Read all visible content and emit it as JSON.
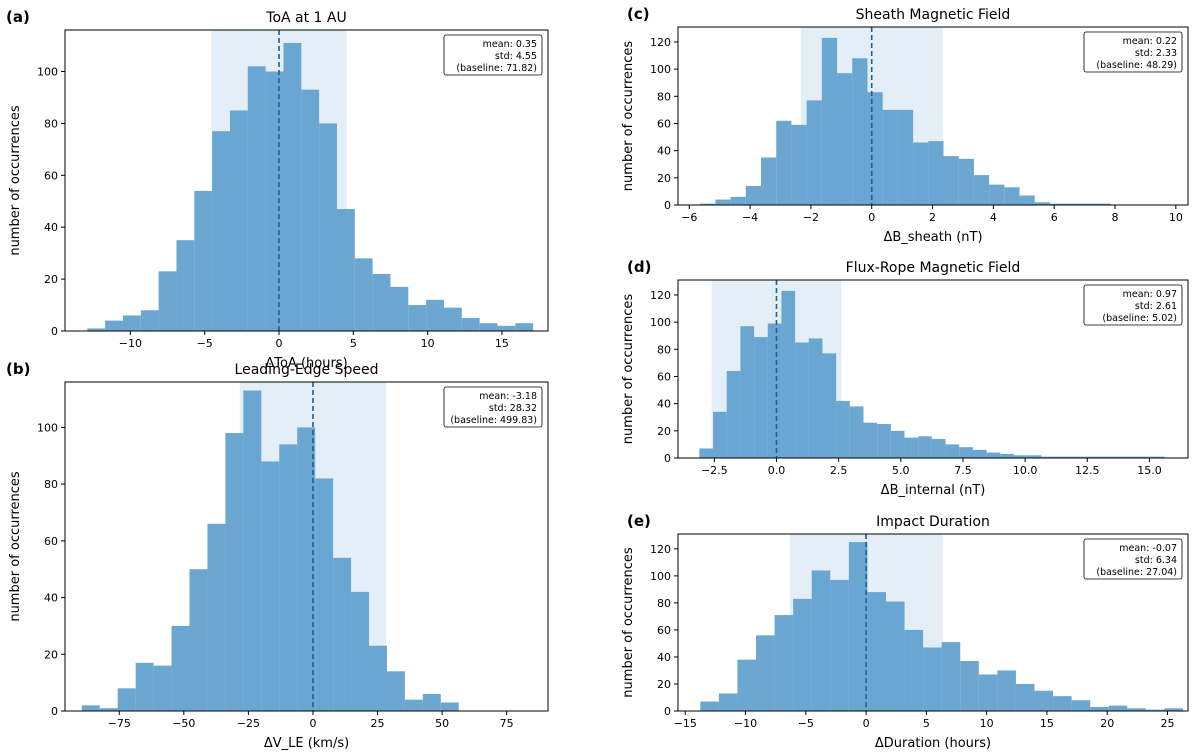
{
  "chart_data": [
    {
      "id": "a",
      "panel_label": "(a)",
      "type": "bar",
      "title": "ToA at 1 AU",
      "xlabel": "ΔToA (hours)",
      "ylabel": "number of occurrences",
      "xlim": [
        -14.4,
        18.1
      ],
      "ylim": [
        0,
        116
      ],
      "xticks": [
        -10,
        -5,
        0,
        5,
        10,
        15
      ],
      "yticks": [
        0,
        20,
        40,
        60,
        80,
        100
      ],
      "bin_start": -12.9,
      "bin_width": 1.2,
      "counts": [
        1,
        4,
        6,
        8,
        23,
        35,
        54,
        77,
        85,
        102,
        100,
        111,
        93,
        80,
        47,
        28,
        22,
        17,
        10,
        12,
        9,
        5,
        3,
        2,
        3
      ],
      "mean_line": 0,
      "shaded_range": [
        -4.55,
        4.55
      ],
      "stats": [
        "mean: 0.35",
        "std: 4.55",
        "(baseline: 71.82)"
      ]
    },
    {
      "id": "b",
      "panel_label": "(b)",
      "type": "bar",
      "title": "Leading-Edge Speed",
      "xlabel": "ΔV_LE (km/s)",
      "ylabel": "number of occurrences",
      "xlim": [
        -96,
        91
      ],
      "ylim": [
        0,
        116
      ],
      "xticks": [
        -75,
        -50,
        -25,
        0,
        25,
        50,
        75
      ],
      "yticks": [
        0,
        20,
        40,
        60,
        80,
        100
      ],
      "bin_start": -89.5,
      "bin_width": 6.95,
      "counts": [
        2,
        1,
        8,
        17,
        16,
        30,
        50,
        66,
        98,
        113,
        88,
        94,
        100,
        82,
        54,
        42,
        23,
        14,
        4,
        6,
        3
      ],
      "mean_line": 0,
      "shaded_range": [
        -28.32,
        28.32
      ],
      "stats": [
        "mean: -3.18",
        "std: 28.32",
        "(baseline: 499.83)"
      ]
    },
    {
      "id": "c",
      "panel_label": "(c)",
      "type": "bar",
      "title": "Sheath Magnetic Field",
      "xlabel": "ΔB_sheath (nT)",
      "ylabel": "number of occurrences",
      "xlim": [
        -6.37,
        10.4
      ],
      "ylim": [
        0,
        131
      ],
      "xticks": [
        -6,
        -4,
        -2,
        0,
        2,
        4,
        6,
        8,
        10
      ],
      "yticks": [
        0,
        20,
        40,
        60,
        80,
        100,
        120
      ],
      "bin_start": -5.64,
      "bin_width": 0.5,
      "counts": [
        1,
        4,
        6,
        14,
        35,
        62,
        59,
        77,
        123,
        97,
        108,
        83,
        70,
        70,
        46,
        47,
        36,
        34,
        22,
        15,
        13,
        7,
        2,
        1,
        1,
        1,
        1
      ],
      "mean_line": 0,
      "shaded_range": [
        -2.33,
        2.33
      ],
      "stats": [
        "mean: 0.22",
        "std: 2.33",
        "(baseline: 48.29)"
      ]
    },
    {
      "id": "d",
      "panel_label": "(d)",
      "type": "bar",
      "title": "Flux-Rope Magnetic Field",
      "xlabel": "ΔB_internal (nT)",
      "ylabel": "number of occurrences",
      "xlim": [
        -3.96,
        16.55
      ],
      "ylim": [
        0,
        131
      ],
      "xticks": [
        -2.5,
        0.0,
        2.5,
        5.0,
        7.5,
        10.0,
        12.5,
        15.0
      ],
      "yticks": [
        0,
        20,
        40,
        60,
        80,
        100,
        120
      ],
      "bin_start": -3.1,
      "bin_width": 0.55,
      "counts": [
        7,
        34,
        64,
        97,
        89,
        99,
        123,
        85,
        88,
        77,
        42,
        38,
        26,
        25,
        20,
        15,
        16,
        14,
        10,
        8,
        6,
        4,
        3,
        2,
        2,
        1,
        1,
        1,
        1,
        1,
        1,
        1,
        1,
        1
      ],
      "mean_line": 0,
      "shaded_range": [
        -2.61,
        2.61
      ],
      "stats": [
        "mean: 0.97",
        "std: 2.61",
        "(baseline: 5.02)"
      ]
    },
    {
      "id": "e",
      "panel_label": "(e)",
      "type": "bar",
      "title": "Impact Duration",
      "xlabel": "ΔDuration (hours)",
      "ylabel": "number of occurrences",
      "xlim": [
        -15.6,
        26.7
      ],
      "ylim": [
        0,
        131
      ],
      "xticks": [
        -15,
        -10,
        -5,
        0,
        5,
        10,
        15,
        20,
        25
      ],
      "yticks": [
        0,
        20,
        40,
        60,
        80,
        100,
        120
      ],
      "bin_start": -13.75,
      "bin_width": 1.54,
      "counts": [
        7,
        13,
        38,
        56,
        71,
        83,
        104,
        97,
        125,
        88,
        81,
        60,
        47,
        51,
        37,
        27,
        30,
        20,
        15,
        11,
        8,
        3,
        4,
        2,
        1,
        2
      ],
      "mean_line": 0,
      "shaded_range": [
        -6.34,
        6.34
      ],
      "stats": [
        "mean: -0.07",
        "std: 6.34",
        "(baseline: 27.04)"
      ]
    }
  ]
}
